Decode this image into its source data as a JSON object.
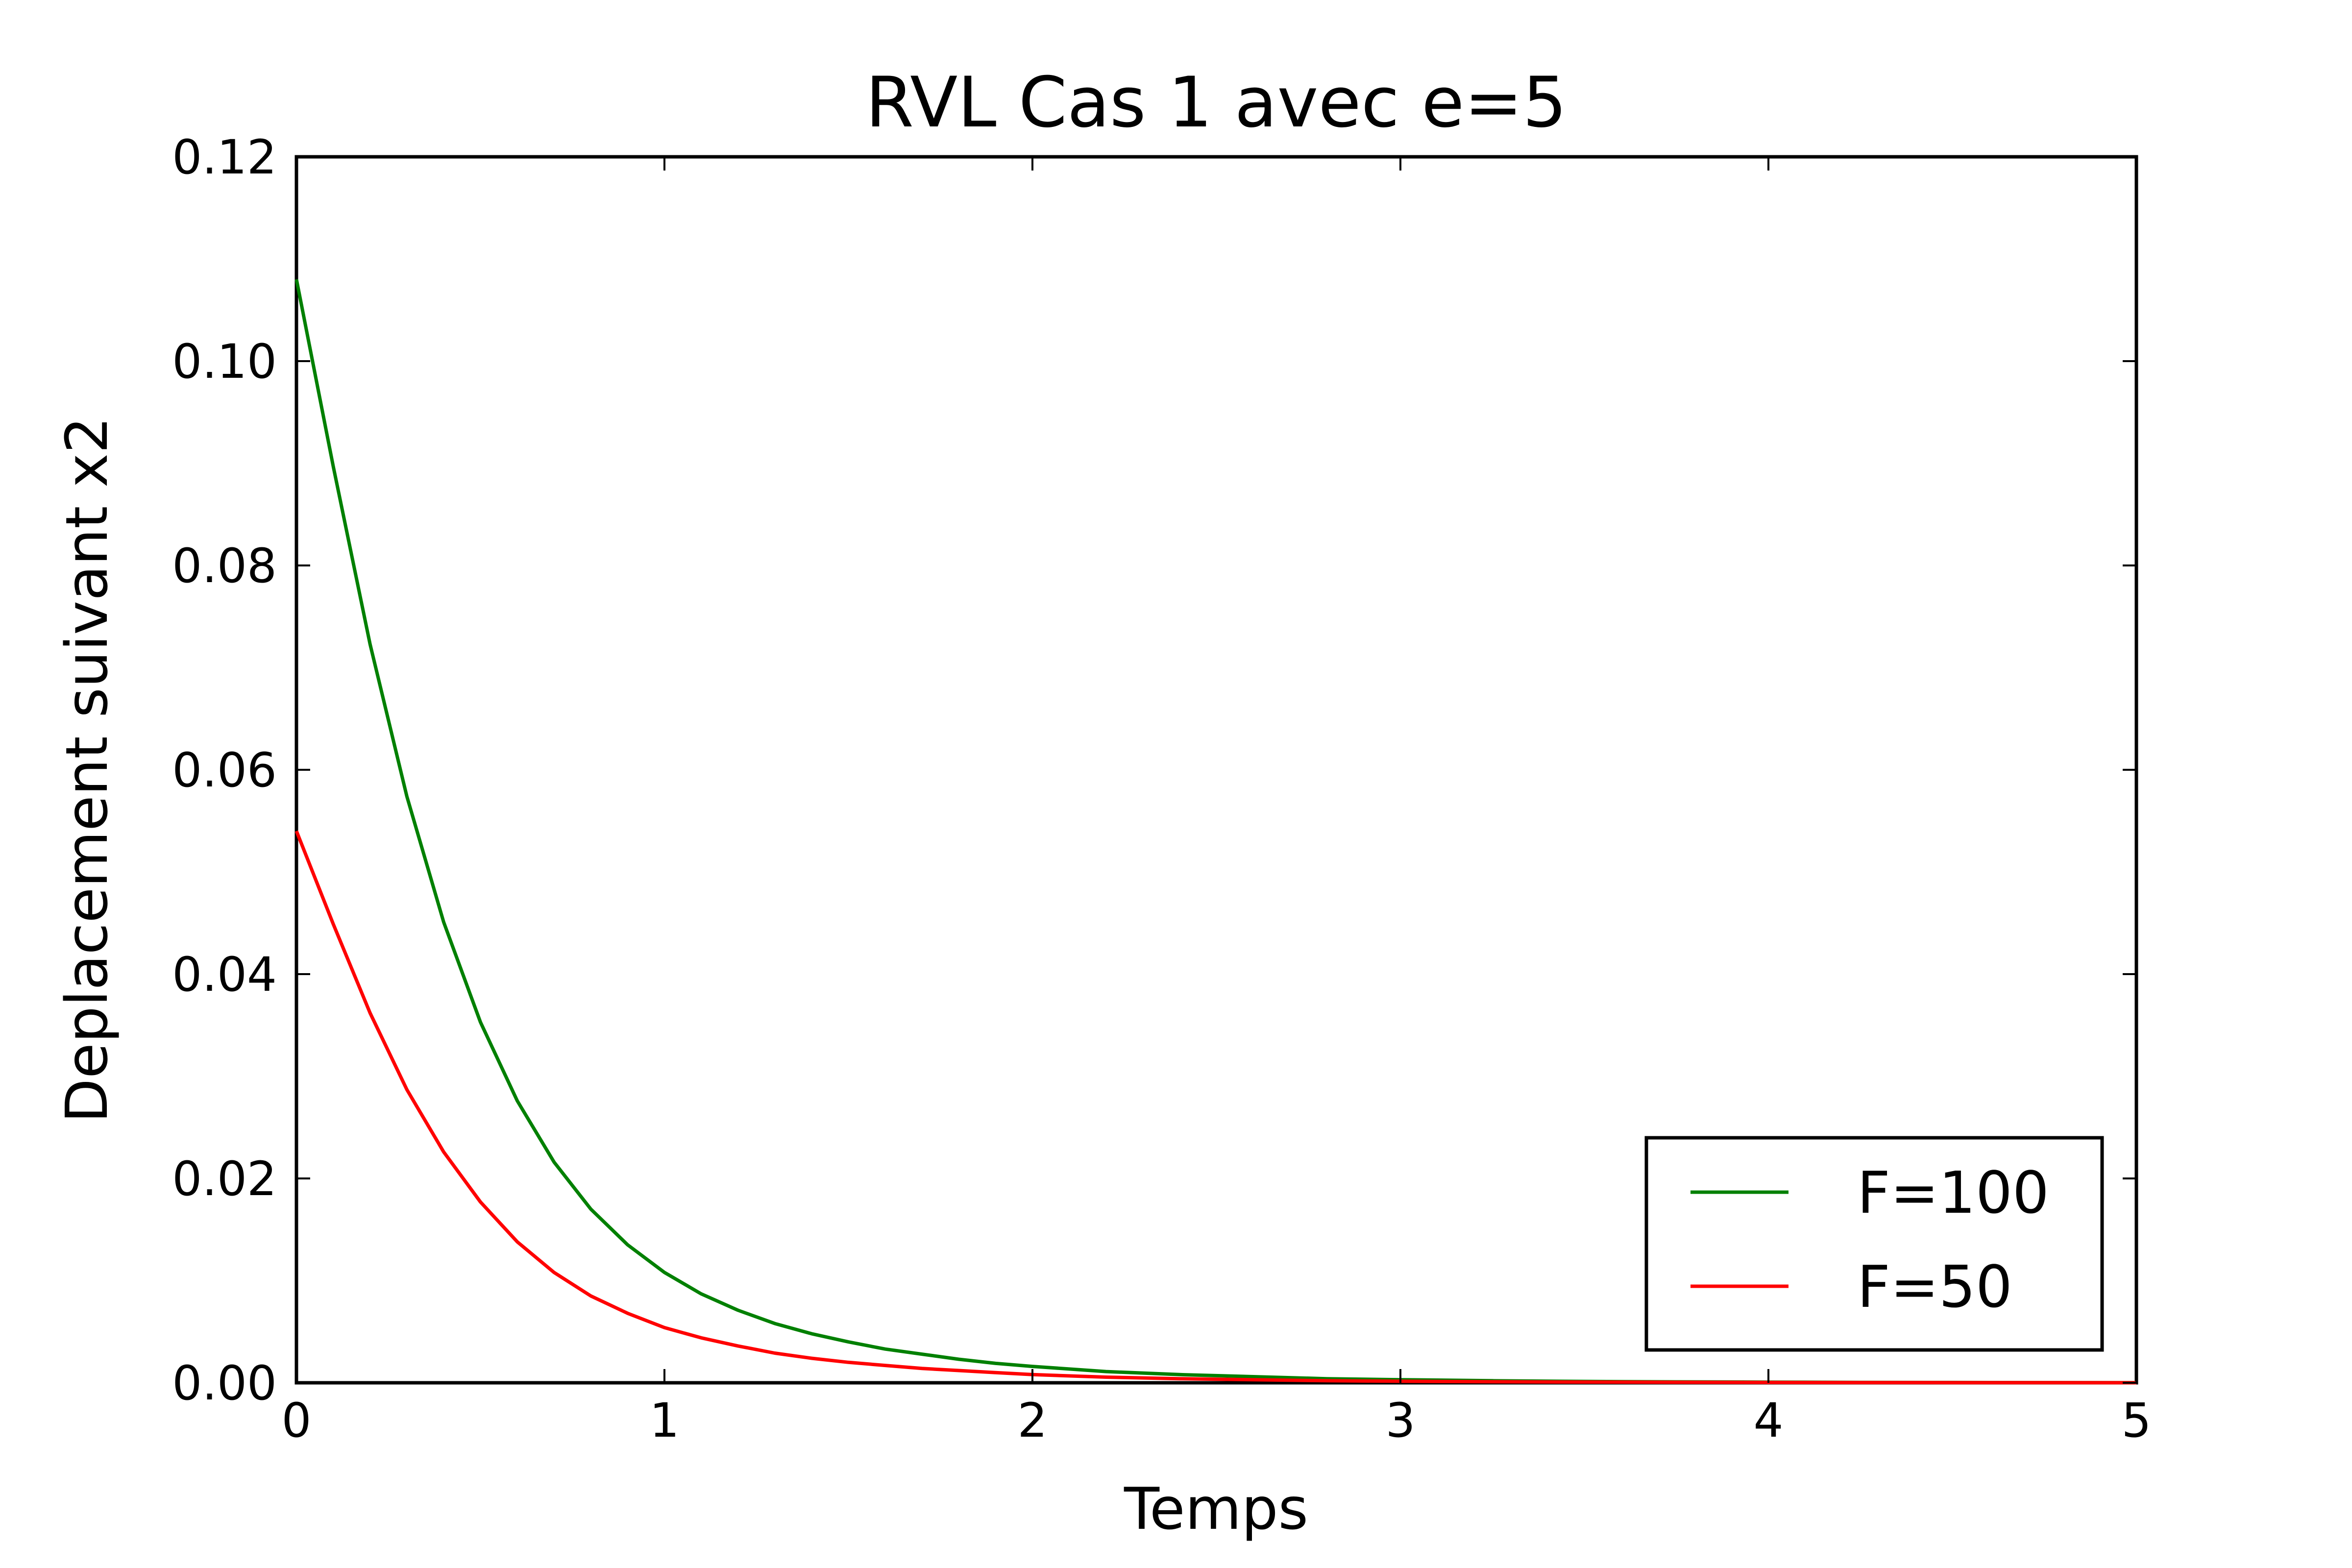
{
  "chart_data": {
    "type": "line",
    "title": "RVL Cas 1 avec e=5",
    "xlabel": "Temps",
    "ylabel": "Deplacement suivant x2",
    "xlim": [
      0,
      5
    ],
    "ylim": [
      0,
      0.12
    ],
    "x_ticks": [
      "0",
      "1",
      "2",
      "3",
      "4",
      "5"
    ],
    "y_ticks": [
      "0.00",
      "0.02",
      "0.04",
      "0.06",
      "0.08",
      "0.10",
      "0.12"
    ],
    "grid": false,
    "legend_position": "lower-right",
    "x": [
      0,
      0.1,
      0.2,
      0.3,
      0.4,
      0.5,
      0.6,
      0.7,
      0.8,
      0.9,
      1.0,
      1.1,
      1.2,
      1.3,
      1.4,
      1.5,
      1.6,
      1.7,
      1.8,
      1.9,
      2.0,
      2.2,
      2.4,
      2.6,
      2.8,
      3.0,
      3.25,
      3.5,
      3.75,
      4.0,
      4.25,
      4.5,
      4.75,
      5.0
    ],
    "series": [
      {
        "name": "F=100",
        "color": "#008000",
        "values": [
          0.108,
          0.0897,
          0.0723,
          0.0574,
          0.0451,
          0.0353,
          0.0276,
          0.0216,
          0.017,
          0.0135,
          0.0108,
          0.0087,
          0.0071,
          0.0058,
          0.0048,
          0.004,
          0.0033,
          0.0028,
          0.0023,
          0.0019,
          0.0016,
          0.0011,
          0.0008,
          0.0006,
          0.0004,
          0.0003,
          0.0002,
          0.00013,
          9e-05,
          6e-05,
          4e-05,
          3e-05,
          2e-05,
          1e-05
        ]
      },
      {
        "name": "F=50",
        "color": "#ff0000",
        "values": [
          0.054,
          0.0449,
          0.0362,
          0.0287,
          0.0226,
          0.0177,
          0.0138,
          0.0108,
          0.0085,
          0.0068,
          0.0054,
          0.0044,
          0.0036,
          0.0029,
          0.0024,
          0.002,
          0.0017,
          0.0014,
          0.0012,
          0.001,
          0.0008,
          0.00055,
          0.0004,
          0.0003,
          0.0002,
          0.00015,
          0.0001,
          7e-05,
          5e-05,
          3e-05,
          2e-05,
          1.5e-05,
          1e-05,
          5e-06
        ]
      }
    ]
  }
}
